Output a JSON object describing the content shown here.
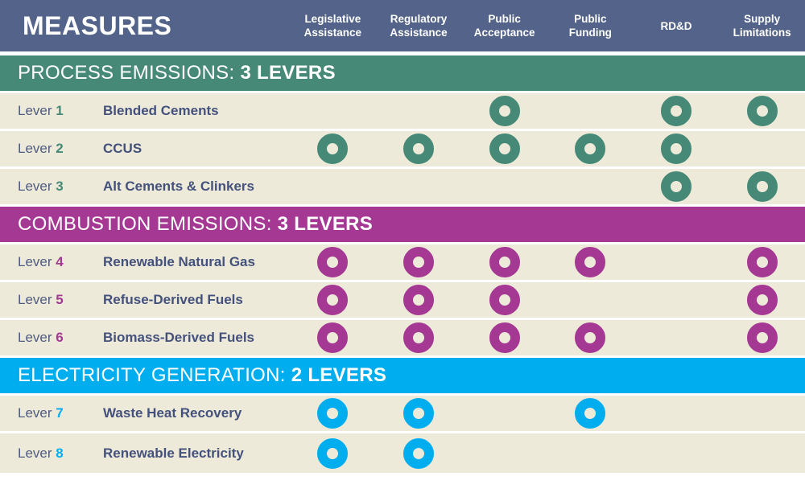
{
  "strings": {
    "lever_word": "Lever "
  },
  "colors": {
    "header_bg": "#536389",
    "row_bg": "#edead9",
    "separator": "#ffffff",
    "measure_text": "#44517d",
    "lever_label_text": "#4f5c82",
    "process_green": "#468977",
    "combustion_magenta": "#a43893",
    "electricity_blue": "#00aeef"
  },
  "header": {
    "title": "MEASURES",
    "columns": [
      {
        "id": "legislative-assistance",
        "lines": [
          "Legislative",
          "Assistance"
        ]
      },
      {
        "id": "regulatory-assistance",
        "lines": [
          "Regulatory",
          "Assistance"
        ]
      },
      {
        "id": "public-acceptance",
        "lines": [
          "Public",
          "Acceptance"
        ]
      },
      {
        "id": "public-funding",
        "lines": [
          "Public",
          "Funding"
        ]
      },
      {
        "id": "rdd",
        "lines": [
          "RD&D"
        ]
      },
      {
        "id": "supply-limitations",
        "lines": [
          "Supply",
          "Limitations"
        ]
      }
    ]
  },
  "sections": [
    {
      "id": "process-emissions",
      "title": "PROCESS EMISSIONS: ",
      "levers_label": "3 LEVERS",
      "color": "#468977",
      "rows": [
        {
          "num": "1",
          "name": "Blended Cements",
          "dots": [
            0,
            0,
            1,
            0,
            1,
            1
          ]
        },
        {
          "num": "2",
          "name": "CCUS",
          "dots": [
            1,
            1,
            1,
            1,
            1,
            0
          ]
        },
        {
          "num": "3",
          "name": "Alt Cements & Clinkers",
          "dots": [
            0,
            0,
            0,
            0,
            1,
            1
          ]
        }
      ]
    },
    {
      "id": "combustion-emissions",
      "title": "COMBUSTION EMISSIONS: ",
      "levers_label": "3 LEVERS",
      "color": "#a43893",
      "rows": [
        {
          "num": "4",
          "name": "Renewable Natural Gas",
          "dots": [
            1,
            1,
            1,
            1,
            0,
            1
          ]
        },
        {
          "num": "5",
          "name": "Refuse-Derived Fuels",
          "dots": [
            1,
            1,
            1,
            0,
            0,
            1
          ]
        },
        {
          "num": "6",
          "name": "Biomass-Derived Fuels",
          "dots": [
            1,
            1,
            1,
            1,
            0,
            1
          ]
        }
      ]
    },
    {
      "id": "electricity-generation",
      "title": "ELECTRICITY GENERATION: ",
      "levers_label": "2 LEVERS",
      "color": "#00aeef",
      "rows": [
        {
          "num": "7",
          "name": "Waste Heat Recovery",
          "dots": [
            1,
            1,
            0,
            1,
            0,
            0
          ]
        },
        {
          "num": "8",
          "name": "Renewable Electricity",
          "dots": [
            1,
            1,
            0,
            0,
            0,
            0
          ]
        }
      ]
    }
  ],
  "chart_data": {
    "type": "table",
    "title": "MEASURES",
    "columns": [
      "Legislative Assistance",
      "Regulatory Assistance",
      "Public Acceptance",
      "Public Funding",
      "RD&D",
      "Supply Limitations"
    ],
    "groups": [
      {
        "name": "PROCESS EMISSIONS",
        "lever_count": 3,
        "rows": [
          {
            "lever": 1,
            "measure": "Blended Cements",
            "applies": [
              "Public Acceptance",
              "RD&D",
              "Supply Limitations"
            ]
          },
          {
            "lever": 2,
            "measure": "CCUS",
            "applies": [
              "Legislative Assistance",
              "Regulatory Assistance",
              "Public Acceptance",
              "Public Funding",
              "RD&D"
            ]
          },
          {
            "lever": 3,
            "measure": "Alt Cements & Clinkers",
            "applies": [
              "RD&D",
              "Supply Limitations"
            ]
          }
        ]
      },
      {
        "name": "COMBUSTION EMISSIONS",
        "lever_count": 3,
        "rows": [
          {
            "lever": 4,
            "measure": "Renewable Natural Gas",
            "applies": [
              "Legislative Assistance",
              "Regulatory Assistance",
              "Public Acceptance",
              "Public Funding",
              "Supply Limitations"
            ]
          },
          {
            "lever": 5,
            "measure": "Refuse-Derived Fuels",
            "applies": [
              "Legislative Assistance",
              "Regulatory Assistance",
              "Public Acceptance",
              "Supply Limitations"
            ]
          },
          {
            "lever": 6,
            "measure": "Biomass-Derived Fuels",
            "applies": [
              "Legislative Assistance",
              "Regulatory Assistance",
              "Public Acceptance",
              "Public Funding",
              "Supply Limitations"
            ]
          }
        ]
      },
      {
        "name": "ELECTRICITY GENERATION",
        "lever_count": 2,
        "rows": [
          {
            "lever": 7,
            "measure": "Waste Heat Recovery",
            "applies": [
              "Legislative Assistance",
              "Regulatory Assistance",
              "Public Funding"
            ]
          },
          {
            "lever": 8,
            "measure": "Renewable Electricity",
            "applies": [
              "Legislative Assistance",
              "Regulatory Assistance"
            ]
          }
        ]
      }
    ]
  }
}
